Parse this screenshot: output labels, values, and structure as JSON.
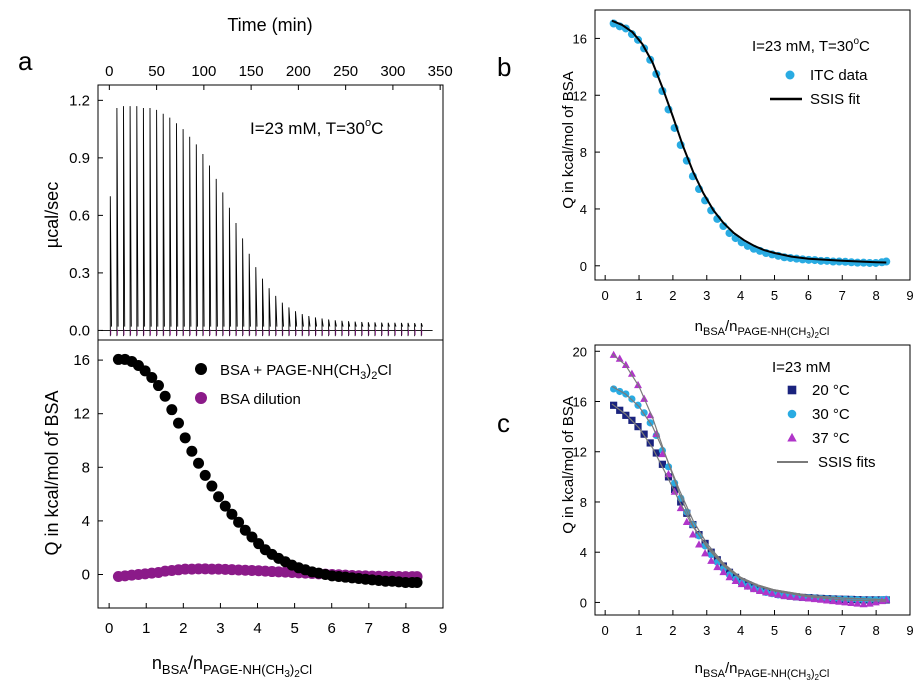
{
  "panels": {
    "a": {
      "label": "a"
    },
    "b": {
      "label": "b"
    },
    "c": {
      "label": "c"
    }
  },
  "chart_data": [
    {
      "id": "a_top",
      "type": "line",
      "xlabel": "Time (min)",
      "ylabel": "µcal/sec",
      "xlim": [
        -12,
        353
      ],
      "ylim": [
        -0.05,
        1.28
      ],
      "xticks": [
        "0",
        "50",
        "100",
        "150",
        "200",
        "250",
        "300",
        "350"
      ],
      "yticks": [
        "0.0",
        "0.3",
        "0.6",
        "0.9",
        "1.2"
      ],
      "annotation": {
        "prefix": "I=23 mM, T=30",
        "sup": "o",
        "suffix": "C"
      },
      "injections": {
        "count": 48,
        "first_time": 1,
        "interval": 7,
        "peaks": [
          0.7,
          1.16,
          1.17,
          1.17,
          1.17,
          1.16,
          1.16,
          1.15,
          1.13,
          1.11,
          1.08,
          1.05,
          1.01,
          0.97,
          0.92,
          0.86,
          0.79,
          0.72,
          0.64,
          0.56,
          0.48,
          0.4,
          0.33,
          0.27,
          0.22,
          0.18,
          0.145,
          0.12,
          0.1,
          0.085,
          0.075,
          0.068,
          0.062,
          0.057,
          0.053,
          0.05,
          0.048,
          0.046,
          0.044,
          0.043,
          0.042,
          0.041,
          0.04,
          0.04,
          0.039,
          0.039,
          0.038,
          0.038
        ],
        "baseline_dip": -0.03
      }
    },
    {
      "id": "a_bottom",
      "type": "scatter",
      "xlabel": "n_BSA/n_PAGE-NH(CH3)2Cl",
      "ylabel": "Q in kcal/mol of BSA",
      "xlim": [
        -0.3,
        9
      ],
      "ylim": [
        -2.5,
        17.5
      ],
      "xticks": [
        "0",
        "1",
        "2",
        "3",
        "4",
        "5",
        "6",
        "7",
        "8",
        "9"
      ],
      "yticks": [
        "0",
        "4",
        "8",
        "12",
        "16"
      ],
      "series": [
        {
          "name": "BSA + PAGE-NH(CH3)2Cl",
          "color": "#000000",
          "marker": "circle",
          "x": [
            0.25,
            0.43,
            0.61,
            0.79,
            0.97,
            1.15,
            1.33,
            1.51,
            1.69,
            1.87,
            2.05,
            2.23,
            2.41,
            2.59,
            2.77,
            2.95,
            3.13,
            3.31,
            3.49,
            3.67,
            3.85,
            4.03,
            4.21,
            4.39,
            4.57,
            4.75,
            4.93,
            5.11,
            5.29,
            5.47,
            5.65,
            5.83,
            6.01,
            6.19,
            6.37,
            6.55,
            6.73,
            6.91,
            7.09,
            7.27,
            7.45,
            7.63,
            7.81,
            7.99,
            8.17,
            8.3
          ],
          "y": [
            16.05,
            16.05,
            15.9,
            15.6,
            15.2,
            14.7,
            14.1,
            13.3,
            12.3,
            11.3,
            10.2,
            9.2,
            8.3,
            7.4,
            6.6,
            5.8,
            5.1,
            4.5,
            3.9,
            3.3,
            2.8,
            2.3,
            1.85,
            1.5,
            1.2,
            0.95,
            0.7,
            0.5,
            0.35,
            0.2,
            0.1,
            0.0,
            -0.1,
            -0.15,
            -0.2,
            -0.25,
            -0.3,
            -0.35,
            -0.4,
            -0.45,
            -0.5,
            -0.5,
            -0.55,
            -0.6,
            -0.6,
            -0.6
          ]
        },
        {
          "name": "BSA dilution",
          "color": "#8b1a89",
          "marker": "circle",
          "x": [
            0.25,
            0.43,
            0.61,
            0.79,
            0.97,
            1.15,
            1.33,
            1.51,
            1.69,
            1.87,
            2.05,
            2.23,
            2.41,
            2.59,
            2.77,
            2.95,
            3.13,
            3.31,
            3.49,
            3.67,
            3.85,
            4.03,
            4.21,
            4.39,
            4.57,
            4.75,
            4.93,
            5.11,
            5.29,
            5.47,
            5.65,
            5.83,
            6.01,
            6.19,
            6.37,
            6.55,
            6.73,
            6.91,
            7.09,
            7.27,
            7.45,
            7.63,
            7.81,
            7.99,
            8.17,
            8.3
          ],
          "y": [
            -0.15,
            -0.1,
            -0.05,
            0.0,
            0.05,
            0.1,
            0.15,
            0.25,
            0.3,
            0.35,
            0.4,
            0.4,
            0.42,
            0.42,
            0.4,
            0.4,
            0.38,
            0.36,
            0.34,
            0.32,
            0.3,
            0.28,
            0.25,
            0.22,
            0.2,
            0.18,
            0.15,
            0.12,
            0.1,
            0.08,
            0.05,
            0.03,
            0.0,
            -0.02,
            -0.05,
            -0.07,
            -0.09,
            -0.1,
            -0.12,
            -0.13,
            -0.14,
            -0.15,
            -0.15,
            -0.16,
            -0.16,
            -0.16
          ]
        }
      ]
    },
    {
      "id": "b",
      "type": "scatter",
      "xlabel": "n_BSA/n_PAGE-NH(CH3)2Cl",
      "ylabel": "Q in kcal/mol of BSA",
      "xlim": [
        -0.3,
        9
      ],
      "ylim": [
        -1.0,
        18.0
      ],
      "xticks": [
        "0",
        "1",
        "2",
        "3",
        "4",
        "5",
        "6",
        "7",
        "8",
        "9"
      ],
      "yticks": [
        "0",
        "4",
        "8",
        "12",
        "16"
      ],
      "annotation": {
        "prefix": "I=23 mM, T=30",
        "sup": "o",
        "suffix": "C"
      },
      "series": [
        {
          "name": "ITC data",
          "color": "#29abe2",
          "marker": "circle",
          "x": [
            0.25,
            0.43,
            0.61,
            0.79,
            0.97,
            1.15,
            1.33,
            1.51,
            1.69,
            1.87,
            2.05,
            2.23,
            2.41,
            2.59,
            2.77,
            2.95,
            3.13,
            3.31,
            3.49,
            3.67,
            3.85,
            4.03,
            4.21,
            4.39,
            4.57,
            4.75,
            4.93,
            5.11,
            5.29,
            5.47,
            5.65,
            5.83,
            6.01,
            6.19,
            6.37,
            6.55,
            6.73,
            6.91,
            7.09,
            7.27,
            7.45,
            7.63,
            7.81,
            7.99,
            8.17,
            8.3
          ],
          "y": [
            17.05,
            16.85,
            16.7,
            16.3,
            15.9,
            15.3,
            14.5,
            13.5,
            12.3,
            11.0,
            9.7,
            8.5,
            7.4,
            6.3,
            5.4,
            4.6,
            3.9,
            3.3,
            2.8,
            2.3,
            1.95,
            1.65,
            1.4,
            1.2,
            1.05,
            0.9,
            0.8,
            0.7,
            0.6,
            0.55,
            0.5,
            0.45,
            0.42,
            0.4,
            0.35,
            0.35,
            0.3,
            0.3,
            0.28,
            0.25,
            0.22,
            0.22,
            0.2,
            0.2,
            0.25,
            0.3
          ]
        },
        {
          "name": "SSIS fit",
          "color": "#000000",
          "marker": "line",
          "x": [
            0.2,
            0.5,
            0.8,
            1.1,
            1.4,
            1.7,
            2.0,
            2.3,
            2.6,
            2.9,
            3.2,
            3.5,
            3.8,
            4.1,
            4.4,
            4.7,
            5.0,
            5.5,
            6.0,
            6.5,
            7.0,
            7.5,
            8.0,
            8.3
          ],
          "y": [
            17.25,
            16.95,
            16.45,
            15.6,
            14.3,
            12.5,
            10.5,
            8.4,
            6.6,
            5.1,
            3.9,
            3.0,
            2.3,
            1.8,
            1.4,
            1.1,
            0.9,
            0.65,
            0.5,
            0.42,
            0.35,
            0.3,
            0.25,
            0.23
          ]
        }
      ]
    },
    {
      "id": "c",
      "type": "scatter",
      "xlabel": "n_BSA/n_PAGE-NH(CH3)2Cl",
      "ylabel": "Q in kcal/mol of BSA",
      "xlim": [
        -0.3,
        9
      ],
      "ylim": [
        -1.0,
        20.5
      ],
      "xticks": [
        "0",
        "1",
        "2",
        "3",
        "4",
        "5",
        "6",
        "7",
        "8",
        "9"
      ],
      "yticks": [
        "0",
        "4",
        "8",
        "12",
        "16",
        "20"
      ],
      "legend_title": "I=23 mM",
      "series": [
        {
          "name": "20 °C",
          "color": "#1a237e",
          "marker": "square",
          "x": [
            0.25,
            0.43,
            0.61,
            0.79,
            0.97,
            1.15,
            1.33,
            1.51,
            1.69,
            1.87,
            2.05,
            2.23,
            2.41,
            2.59,
            2.77,
            2.95,
            3.13,
            3.31,
            3.49,
            3.67,
            3.85,
            4.03,
            4.21,
            4.39,
            4.57,
            4.75,
            4.93,
            5.11,
            5.29,
            5.47,
            5.65,
            5.83,
            6.01,
            6.19,
            6.37,
            6.55,
            6.73,
            6.91,
            7.09,
            7.27,
            7.45,
            7.63,
            7.81,
            7.99,
            8.17,
            8.3
          ],
          "y": [
            15.7,
            15.3,
            14.9,
            14.5,
            14.0,
            13.4,
            12.7,
            11.9,
            11.0,
            10.0,
            9.0,
            8.0,
            7.1,
            6.2,
            5.4,
            4.7,
            4.0,
            3.4,
            2.9,
            2.4,
            2.0,
            1.65,
            1.4,
            1.2,
            1.0,
            0.85,
            0.75,
            0.65,
            0.55,
            0.5,
            0.45,
            0.4,
            0.38,
            0.35,
            0.32,
            0.3,
            0.28,
            0.26,
            0.25,
            0.24,
            0.22,
            0.2,
            0.2,
            0.2,
            0.2,
            0.2
          ]
        },
        {
          "name": "30 °C",
          "color": "#29abe2",
          "marker": "circle",
          "x": [
            0.25,
            0.43,
            0.61,
            0.79,
            0.97,
            1.15,
            1.33,
            1.51,
            1.69,
            1.87,
            2.05,
            2.23,
            2.41,
            2.59,
            2.77,
            2.95,
            3.13,
            3.31,
            3.49,
            3.67,
            3.85,
            4.03,
            4.21,
            4.39,
            4.57,
            4.75,
            4.93,
            5.11,
            5.29,
            5.47,
            5.65,
            5.83,
            6.01,
            6.19,
            6.37,
            6.55,
            6.73,
            6.91,
            7.09,
            7.27,
            7.45,
            7.63,
            7.81,
            7.99,
            8.17,
            8.3
          ],
          "y": [
            17.0,
            16.8,
            16.6,
            16.2,
            15.7,
            15.1,
            14.3,
            13.3,
            12.1,
            10.8,
            9.5,
            8.3,
            7.2,
            6.2,
            5.3,
            4.5,
            3.8,
            3.2,
            2.7,
            2.2,
            1.85,
            1.55,
            1.3,
            1.1,
            0.95,
            0.8,
            0.7,
            0.6,
            0.55,
            0.5,
            0.45,
            0.4,
            0.38,
            0.35,
            0.32,
            0.3,
            0.28,
            0.26,
            0.25,
            0.24,
            0.22,
            0.2,
            0.2,
            0.2,
            0.22,
            0.25
          ]
        },
        {
          "name": "37 °C",
          "color": "#b035c9",
          "marker": "triangle",
          "x": [
            0.25,
            0.43,
            0.61,
            0.79,
            0.97,
            1.15,
            1.33,
            1.51,
            1.69,
            1.87,
            2.05,
            2.23,
            2.41,
            2.59,
            2.77,
            2.95,
            3.13,
            3.31,
            3.49,
            3.67,
            3.85,
            4.03,
            4.21,
            4.39,
            4.57,
            4.75,
            4.93,
            5.11,
            5.29,
            5.47,
            5.65,
            5.83,
            6.01,
            6.19,
            6.37,
            6.55,
            6.73,
            6.91,
            7.09,
            7.27,
            7.45,
            7.63,
            7.81,
            7.99,
            8.17,
            8.3
          ],
          "y": [
            19.7,
            19.4,
            18.9,
            18.2,
            17.3,
            16.2,
            14.9,
            13.4,
            11.8,
            10.2,
            8.8,
            7.5,
            6.4,
            5.4,
            4.6,
            3.9,
            3.3,
            2.8,
            2.4,
            2.0,
            1.7,
            1.45,
            1.25,
            1.05,
            0.9,
            0.8,
            0.7,
            0.6,
            0.5,
            0.45,
            0.4,
            0.35,
            0.3,
            0.25,
            0.2,
            0.15,
            0.1,
            0.05,
            0.0,
            -0.05,
            -0.1,
            -0.15,
            -0.1,
            0.0,
            0.1,
            0.2
          ]
        },
        {
          "name": "SSIS fits",
          "color": "#7a7a7a",
          "marker": "line",
          "curves": [
            {
              "x": [
                0.2,
                0.6,
                1.0,
                1.4,
                1.8,
                2.2,
                2.6,
                3.0,
                3.5,
                4.0,
                4.5,
                5.0,
                6.0,
                7.0,
                8.3
              ],
              "y": [
                15.8,
                15.0,
                13.9,
                12.3,
                10.2,
                8.0,
                6.0,
                4.5,
                3.0,
                2.0,
                1.4,
                1.0,
                0.55,
                0.35,
                0.22
              ]
            },
            {
              "x": [
                0.2,
                0.6,
                1.0,
                1.4,
                1.8,
                2.2,
                2.6,
                3.0,
                3.5,
                4.0,
                4.5,
                5.0,
                6.0,
                7.0,
                8.3
              ],
              "y": [
                17.2,
                16.6,
                15.6,
                14.0,
                11.6,
                8.9,
                6.5,
                4.7,
                3.1,
                2.0,
                1.4,
                1.0,
                0.55,
                0.35,
                0.22
              ]
            },
            {
              "x": [
                0.2,
                0.6,
                1.0,
                1.4,
                1.8,
                2.2,
                2.6,
                3.0,
                3.5,
                4.0,
                4.5,
                5.0,
                6.0,
                7.0,
                8.3
              ],
              "y": [
                19.8,
                18.9,
                17.2,
                14.7,
                11.6,
                8.6,
                6.1,
                4.4,
                2.9,
                1.9,
                1.3,
                0.9,
                0.45,
                0.2,
                0.1
              ]
            }
          ]
        }
      ]
    }
  ]
}
